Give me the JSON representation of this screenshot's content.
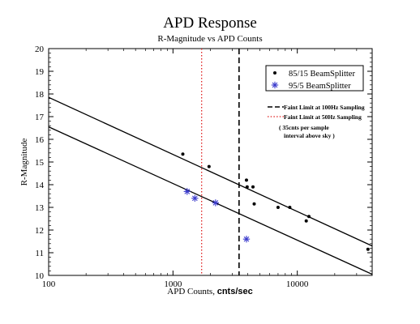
{
  "chart_data": {
    "type": "scatter",
    "title": "APD Response",
    "subtitle": "R-Magnitude vs APD Counts",
    "xlabel": "APD Counts, ",
    "xlabel_unit": "cnts/sec",
    "ylabel": "R-Magnitude",
    "x_scale": "log",
    "xlim": [
      100,
      40000
    ],
    "ylim": [
      10,
      20
    ],
    "x_tick_labels": [
      "100",
      "1000",
      "10000"
    ],
    "y_ticks": [
      10,
      11,
      12,
      13,
      14,
      15,
      16,
      17,
      18,
      19,
      20
    ],
    "series": [
      {
        "name": "85/15 BeamSplitter",
        "marker": "dot",
        "color": "#000000",
        "points": [
          {
            "x": 1200,
            "y": 15.35
          },
          {
            "x": 1950,
            "y": 14.8
          },
          {
            "x": 3900,
            "y": 14.2
          },
          {
            "x": 3950,
            "y": 13.9
          },
          {
            "x": 4400,
            "y": 13.9
          },
          {
            "x": 4500,
            "y": 13.15
          },
          {
            "x": 7000,
            "y": 13.0
          },
          {
            "x": 8700,
            "y": 13.0
          },
          {
            "x": 11800,
            "y": 12.4
          },
          {
            "x": 12400,
            "y": 12.6
          },
          {
            "x": 37000,
            "y": 11.15
          }
        ]
      },
      {
        "name": "95/5 BeamSplitter",
        "marker": "asterisk",
        "color": "#3b3bcc",
        "points": [
          {
            "x": 1300,
            "y": 13.7
          },
          {
            "x": 1500,
            "y": 13.4
          },
          {
            "x": 2200,
            "y": 13.2
          },
          {
            "x": 3900,
            "y": 11.6
          }
        ]
      }
    ],
    "fit_lines": [
      {
        "points": [
          {
            "x": 100,
            "y": 17.85
          },
          {
            "x": 40000,
            "y": 11.3
          }
        ],
        "color": "#000000"
      },
      {
        "points": [
          {
            "x": 100,
            "y": 16.55
          },
          {
            "x": 40000,
            "y": 10.05
          }
        ],
        "color": "#000000"
      }
    ],
    "vertical_lines": [
      {
        "label": "Faint Limit at 100Hz Sampling",
        "x": 3400,
        "style": "dashed",
        "color": "#000000"
      },
      {
        "label": "Faint Limit at 50Hz Sampling",
        "x": 1700,
        "style": "dotted",
        "color": "#e02020"
      }
    ],
    "annotation_lines": [
      "( 35cnts per sample",
      "interval above sky )"
    ],
    "legend": "top-right",
    "grid": false
  }
}
